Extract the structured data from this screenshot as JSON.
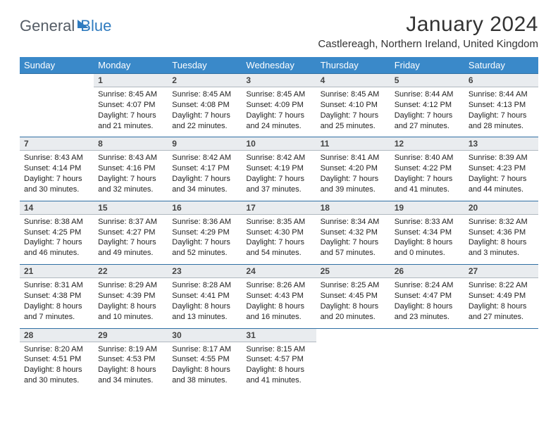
{
  "logo": {
    "part1": "General",
    "part2": "Blue"
  },
  "title": "January 2024",
  "location": "Castlereagh, Northern Ireland, United Kingdom",
  "colors": {
    "header_bg": "#3a89c9",
    "header_text": "#ffffff",
    "daynum_bg": "#e9ecef",
    "row_border": "#2f6fa3",
    "logo_gray": "#555d66",
    "logo_blue": "#2f7bbf"
  },
  "days": [
    "Sunday",
    "Monday",
    "Tuesday",
    "Wednesday",
    "Thursday",
    "Friday",
    "Saturday"
  ],
  "weeks": [
    [
      null,
      {
        "n": "1",
        "sr": "Sunrise: 8:45 AM",
        "ss": "Sunset: 4:07 PM",
        "d1": "Daylight: 7 hours",
        "d2": "and 21 minutes."
      },
      {
        "n": "2",
        "sr": "Sunrise: 8:45 AM",
        "ss": "Sunset: 4:08 PM",
        "d1": "Daylight: 7 hours",
        "d2": "and 22 minutes."
      },
      {
        "n": "3",
        "sr": "Sunrise: 8:45 AM",
        "ss": "Sunset: 4:09 PM",
        "d1": "Daylight: 7 hours",
        "d2": "and 24 minutes."
      },
      {
        "n": "4",
        "sr": "Sunrise: 8:45 AM",
        "ss": "Sunset: 4:10 PM",
        "d1": "Daylight: 7 hours",
        "d2": "and 25 minutes."
      },
      {
        "n": "5",
        "sr": "Sunrise: 8:44 AM",
        "ss": "Sunset: 4:12 PM",
        "d1": "Daylight: 7 hours",
        "d2": "and 27 minutes."
      },
      {
        "n": "6",
        "sr": "Sunrise: 8:44 AM",
        "ss": "Sunset: 4:13 PM",
        "d1": "Daylight: 7 hours",
        "d2": "and 28 minutes."
      }
    ],
    [
      {
        "n": "7",
        "sr": "Sunrise: 8:43 AM",
        "ss": "Sunset: 4:14 PM",
        "d1": "Daylight: 7 hours",
        "d2": "and 30 minutes."
      },
      {
        "n": "8",
        "sr": "Sunrise: 8:43 AM",
        "ss": "Sunset: 4:16 PM",
        "d1": "Daylight: 7 hours",
        "d2": "and 32 minutes."
      },
      {
        "n": "9",
        "sr": "Sunrise: 8:42 AM",
        "ss": "Sunset: 4:17 PM",
        "d1": "Daylight: 7 hours",
        "d2": "and 34 minutes."
      },
      {
        "n": "10",
        "sr": "Sunrise: 8:42 AM",
        "ss": "Sunset: 4:19 PM",
        "d1": "Daylight: 7 hours",
        "d2": "and 37 minutes."
      },
      {
        "n": "11",
        "sr": "Sunrise: 8:41 AM",
        "ss": "Sunset: 4:20 PM",
        "d1": "Daylight: 7 hours",
        "d2": "and 39 minutes."
      },
      {
        "n": "12",
        "sr": "Sunrise: 8:40 AM",
        "ss": "Sunset: 4:22 PM",
        "d1": "Daylight: 7 hours",
        "d2": "and 41 minutes."
      },
      {
        "n": "13",
        "sr": "Sunrise: 8:39 AM",
        "ss": "Sunset: 4:23 PM",
        "d1": "Daylight: 7 hours",
        "d2": "and 44 minutes."
      }
    ],
    [
      {
        "n": "14",
        "sr": "Sunrise: 8:38 AM",
        "ss": "Sunset: 4:25 PM",
        "d1": "Daylight: 7 hours",
        "d2": "and 46 minutes."
      },
      {
        "n": "15",
        "sr": "Sunrise: 8:37 AM",
        "ss": "Sunset: 4:27 PM",
        "d1": "Daylight: 7 hours",
        "d2": "and 49 minutes."
      },
      {
        "n": "16",
        "sr": "Sunrise: 8:36 AM",
        "ss": "Sunset: 4:29 PM",
        "d1": "Daylight: 7 hours",
        "d2": "and 52 minutes."
      },
      {
        "n": "17",
        "sr": "Sunrise: 8:35 AM",
        "ss": "Sunset: 4:30 PM",
        "d1": "Daylight: 7 hours",
        "d2": "and 54 minutes."
      },
      {
        "n": "18",
        "sr": "Sunrise: 8:34 AM",
        "ss": "Sunset: 4:32 PM",
        "d1": "Daylight: 7 hours",
        "d2": "and 57 minutes."
      },
      {
        "n": "19",
        "sr": "Sunrise: 8:33 AM",
        "ss": "Sunset: 4:34 PM",
        "d1": "Daylight: 8 hours",
        "d2": "and 0 minutes."
      },
      {
        "n": "20",
        "sr": "Sunrise: 8:32 AM",
        "ss": "Sunset: 4:36 PM",
        "d1": "Daylight: 8 hours",
        "d2": "and 3 minutes."
      }
    ],
    [
      {
        "n": "21",
        "sr": "Sunrise: 8:31 AM",
        "ss": "Sunset: 4:38 PM",
        "d1": "Daylight: 8 hours",
        "d2": "and 7 minutes."
      },
      {
        "n": "22",
        "sr": "Sunrise: 8:29 AM",
        "ss": "Sunset: 4:39 PM",
        "d1": "Daylight: 8 hours",
        "d2": "and 10 minutes."
      },
      {
        "n": "23",
        "sr": "Sunrise: 8:28 AM",
        "ss": "Sunset: 4:41 PM",
        "d1": "Daylight: 8 hours",
        "d2": "and 13 minutes."
      },
      {
        "n": "24",
        "sr": "Sunrise: 8:26 AM",
        "ss": "Sunset: 4:43 PM",
        "d1": "Daylight: 8 hours",
        "d2": "and 16 minutes."
      },
      {
        "n": "25",
        "sr": "Sunrise: 8:25 AM",
        "ss": "Sunset: 4:45 PM",
        "d1": "Daylight: 8 hours",
        "d2": "and 20 minutes."
      },
      {
        "n": "26",
        "sr": "Sunrise: 8:24 AM",
        "ss": "Sunset: 4:47 PM",
        "d1": "Daylight: 8 hours",
        "d2": "and 23 minutes."
      },
      {
        "n": "27",
        "sr": "Sunrise: 8:22 AM",
        "ss": "Sunset: 4:49 PM",
        "d1": "Daylight: 8 hours",
        "d2": "and 27 minutes."
      }
    ],
    [
      {
        "n": "28",
        "sr": "Sunrise: 8:20 AM",
        "ss": "Sunset: 4:51 PM",
        "d1": "Daylight: 8 hours",
        "d2": "and 30 minutes."
      },
      {
        "n": "29",
        "sr": "Sunrise: 8:19 AM",
        "ss": "Sunset: 4:53 PM",
        "d1": "Daylight: 8 hours",
        "d2": "and 34 minutes."
      },
      {
        "n": "30",
        "sr": "Sunrise: 8:17 AM",
        "ss": "Sunset: 4:55 PM",
        "d1": "Daylight: 8 hours",
        "d2": "and 38 minutes."
      },
      {
        "n": "31",
        "sr": "Sunrise: 8:15 AM",
        "ss": "Sunset: 4:57 PM",
        "d1": "Daylight: 8 hours",
        "d2": "and 41 minutes."
      },
      null,
      null,
      null
    ]
  ]
}
